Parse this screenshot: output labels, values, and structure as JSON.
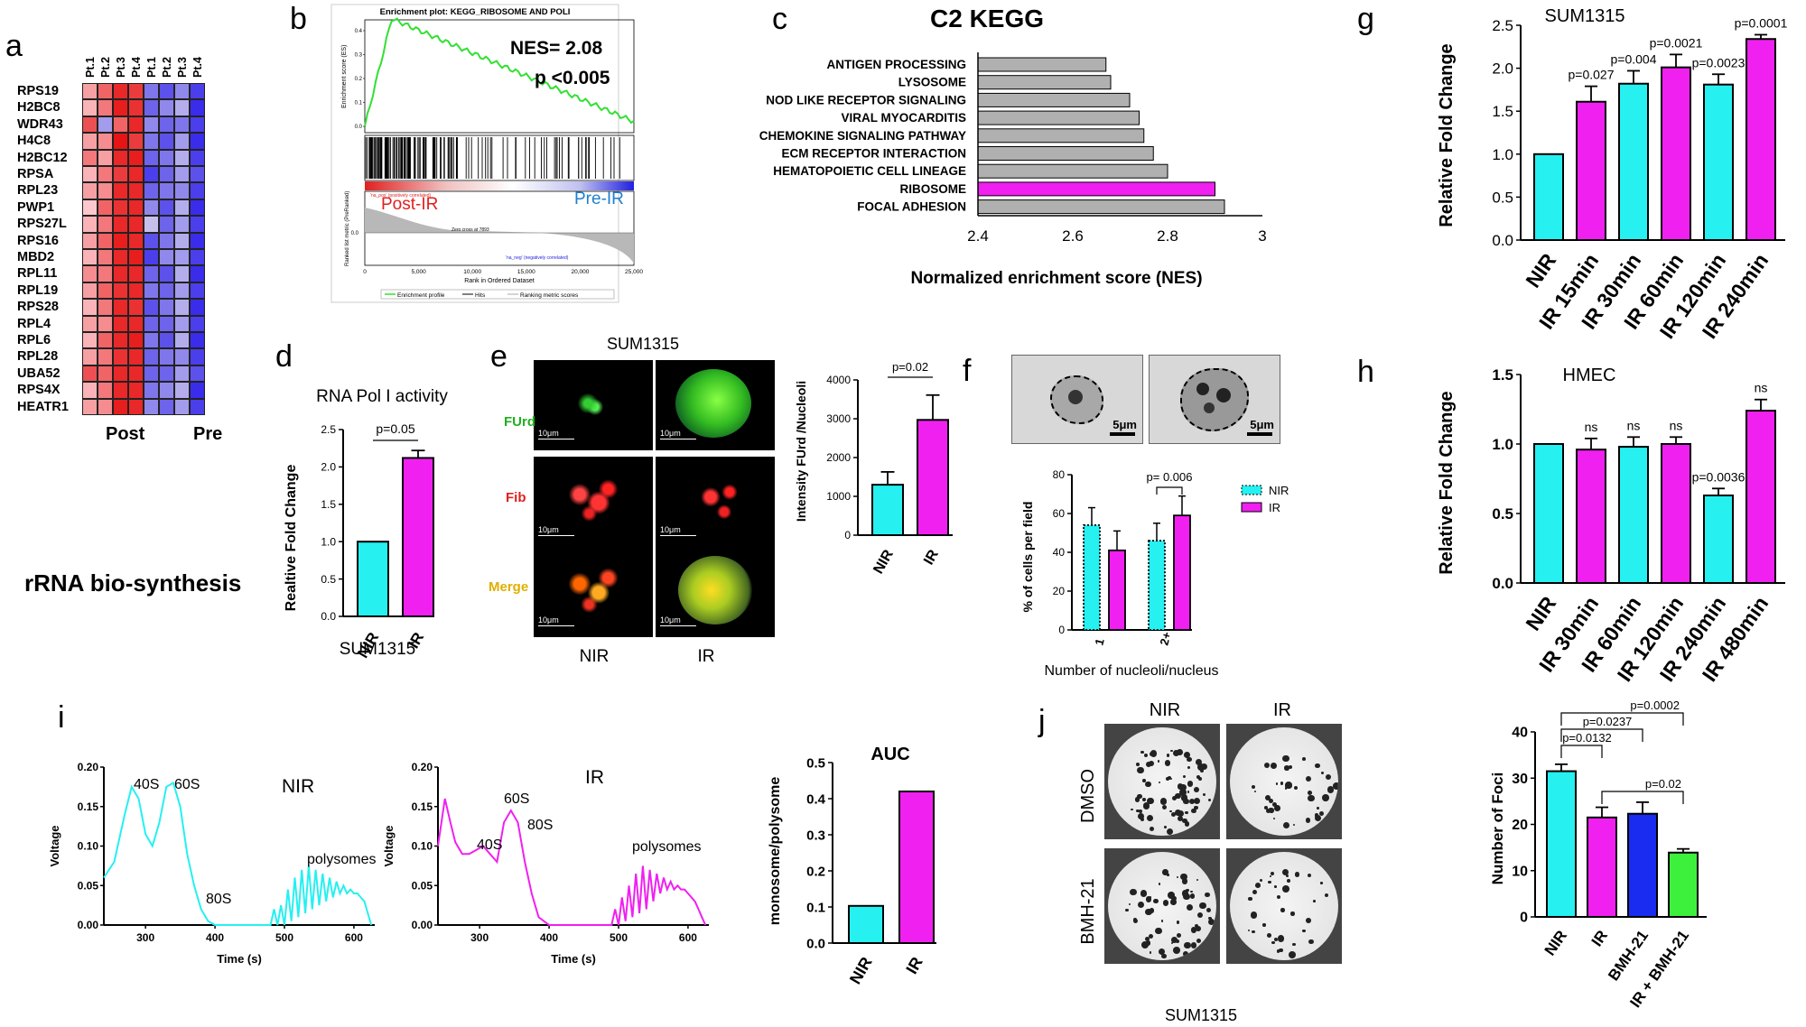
{
  "panel_labels": {
    "a": "a",
    "b": "b",
    "c": "c",
    "d": "d",
    "e": "e",
    "f": "f",
    "g": "g",
    "h": "h",
    "i": "i",
    "j": "j"
  },
  "colors": {
    "cyan": "#26f0f0",
    "magenta": "#f020f0",
    "blue": "#1a2cf0",
    "green": "#3cf03c",
    "grey": "#b0b0b0"
  },
  "panel_a": {
    "columns": [
      "Pt.1",
      "Pt.2",
      "Pt.3",
      "Pt.4",
      "Pt.1",
      "Pt.2",
      "Pt.3",
      "Pt.4"
    ],
    "genes": [
      "RPS19",
      "H2BC8",
      "WDR43",
      "H4C8",
      "H2BC12",
      "RPSA",
      "RPL23",
      "PWP1",
      "RPS27L",
      "RPS16",
      "MBD2",
      "RPL11",
      "RPL19",
      "RPS28",
      "RPL4",
      "RPL6",
      "RPL28",
      "UBA52",
      "RPS4X",
      "HEATR1"
    ],
    "groups": [
      "Post",
      "Pre"
    ],
    "footer": "rRNA bio-synthesis",
    "matrix": [
      [
        0.3,
        0.6,
        0.9,
        0.8,
        -0.5,
        -0.7,
        -0.4,
        -0.8
      ],
      [
        0.2,
        0.5,
        0.95,
        0.85,
        -0.6,
        -0.4,
        -0.2,
        -0.9
      ],
      [
        0.7,
        -0.3,
        0.6,
        0.9,
        -0.4,
        -0.6,
        -0.5,
        -0.8
      ],
      [
        0.3,
        0.4,
        1.0,
        0.8,
        -0.5,
        -0.7,
        -0.3,
        -0.9
      ],
      [
        0.5,
        0.3,
        0.9,
        0.95,
        -0.6,
        -0.5,
        -0.2,
        -0.8
      ],
      [
        0.2,
        0.5,
        0.8,
        0.9,
        -0.8,
        -0.6,
        -0.3,
        -0.7
      ],
      [
        0.3,
        0.4,
        0.9,
        0.9,
        -0.6,
        -0.5,
        -0.4,
        -0.8
      ],
      [
        0.1,
        0.6,
        0.85,
        0.9,
        -0.4,
        -0.7,
        -0.2,
        -0.9
      ],
      [
        0.2,
        0.5,
        0.9,
        0.9,
        -0.1,
        -0.6,
        -0.3,
        -0.8
      ],
      [
        0.3,
        0.6,
        0.95,
        0.9,
        -0.7,
        -0.5,
        -0.2,
        -0.9
      ],
      [
        0.2,
        0.5,
        0.9,
        0.95,
        -0.8,
        -0.4,
        -0.3,
        -0.8
      ],
      [
        0.4,
        0.5,
        0.9,
        0.9,
        -0.6,
        -0.7,
        -0.2,
        -0.9
      ],
      [
        0.3,
        0.6,
        0.85,
        0.9,
        -0.5,
        -0.6,
        -0.3,
        -0.8
      ],
      [
        0.2,
        0.5,
        0.9,
        0.85,
        -0.7,
        -0.5,
        -0.2,
        -0.9
      ],
      [
        0.3,
        0.4,
        0.9,
        0.9,
        -0.6,
        -0.6,
        -0.3,
        -0.8
      ],
      [
        0.2,
        0.6,
        0.9,
        0.95,
        -0.5,
        -0.7,
        -0.2,
        -0.9
      ],
      [
        0.3,
        0.5,
        0.85,
        0.9,
        -0.6,
        -0.5,
        -0.4,
        -0.8
      ],
      [
        0.7,
        0.6,
        0.9,
        0.9,
        -0.6,
        -0.6,
        -0.3,
        -0.7
      ],
      [
        0.2,
        0.5,
        0.9,
        0.9,
        -0.5,
        -0.4,
        -0.2,
        -0.9
      ],
      [
        0.3,
        0.4,
        0.95,
        0.9,
        -0.4,
        -0.6,
        -0.3,
        -0.8
      ]
    ]
  },
  "panel_b": {
    "title": "Enrichment plot: KEGG_RIBOSOME AND POLI",
    "nes": "NES= 2.08",
    "p": "p <0.005",
    "es_label": "Enrichment score (ES)",
    "rank_label": "Ranked list metric (PreRanked)",
    "pos_label": "Post-IR",
    "neg_label": "Pre-IR",
    "pos_note": "'na_pos' (positively correlated)",
    "neg_note": "'na_neg' (negatively correlated)",
    "zero_cross": "Zero cross at 7893",
    "xlabel": "Rank in Ordered Dataset",
    "es_ticks": [
      "0.4",
      "0.3",
      "0.2",
      "0.1",
      "0.0"
    ],
    "rank_ticks": [
      "0.0"
    ],
    "x_ticks": [
      "0",
      "5,000",
      "10,000",
      "15,000",
      "20,000",
      "25,000"
    ],
    "legend": [
      "Enrichment profile",
      "Hits",
      "Ranking metric scores"
    ]
  },
  "panel_c": {
    "title": "C2 KEGG",
    "xlabel": "Normalized enrichment score (NES)",
    "x_ticks": [
      "2.4",
      "2.6",
      "2.8",
      "3"
    ]
  },
  "panel_d": {
    "title": "RNA Pol I activity",
    "ylabel": "Realtive Fold Change",
    "pval": "p=0.05",
    "yticks": [
      "0.0",
      "0.5",
      "1.0",
      "1.5",
      "2.0",
      "2.5"
    ],
    "footer": "SUM1315"
  },
  "panel_e": {
    "title": "SUM1315",
    "rows": [
      "FUrd",
      "Fib",
      "Merge"
    ],
    "cols": [
      "NIR",
      "IR"
    ],
    "scalebar": "10μm",
    "ylabel": "Intensity FUrd /Nucleoli",
    "pval": "p=0.02",
    "yticks": [
      "0",
      "1000",
      "2000",
      "3000",
      "4000"
    ]
  },
  "panel_f": {
    "scalebar": "5μm",
    "ylabel": "% of cells per field",
    "xlabel": "Number of nucleoli/nucleus",
    "pval": "p= 0.006",
    "legend": [
      "NIR",
      "IR"
    ],
    "yticks": [
      "0",
      "20",
      "40",
      "60",
      "80"
    ]
  },
  "panel_g": {
    "title": "SUM1315",
    "ylabel": "Relative Fold Change",
    "yticks": [
      "0.0",
      "0.5",
      "1.0",
      "1.5",
      "2.0",
      "2.5"
    ]
  },
  "panel_h": {
    "title": "HMEC",
    "ylabel": "Relative Fold Change",
    "yticks": [
      "0.0",
      "0.5",
      "1.0",
      "1.5"
    ]
  },
  "panel_i": {
    "xlabel": "Time (s)",
    "ylabel": "Voltage",
    "nir": {
      "title": "NIR",
      "peaks": [
        "40S",
        "60S",
        "80S",
        "polysomes"
      ]
    },
    "ir": {
      "title": "IR",
      "peaks": [
        "40S",
        "60S",
        "80S",
        "polysomes"
      ]
    },
    "yticks": [
      "0.00",
      "0.05",
      "0.10",
      "0.15",
      "0.20"
    ],
    "xticks": [
      "300",
      "400",
      "500",
      "600"
    ],
    "auc_title": "AUC",
    "auc_ylabel": "monosome/polysome",
    "auc_yticks": [
      "0.0",
      "0.1",
      "0.2",
      "0.3",
      "0.4",
      "0.5"
    ]
  },
  "panel_j": {
    "cols": [
      "NIR",
      "IR"
    ],
    "rows": [
      "DMSO",
      "BMH-21"
    ],
    "footer": "SUM1315",
    "ylabel": "Number of Foci",
    "yticks": [
      "0",
      "10",
      "20",
      "30",
      "40"
    ],
    "pvals": [
      "p=0.0002",
      "p=0.0237",
      "p=0.0132",
      "p=0.02"
    ]
  },
  "chart_data": [
    {
      "id": "c",
      "type": "bar",
      "orientation": "horizontal",
      "categories": [
        "ANTIGEN PROCESSING",
        "LYSOSOME",
        "NOD LIKE RECEPTOR SIGNALING",
        "VIRAL MYOCARDITIS",
        "CHEMOKINE SIGNALING PATHWAY",
        "ECM RECEPTOR INTERACTION",
        "HEMATOPOIETIC CELL LINEAGE",
        "RIBOSOME",
        "FOCAL ADHESION"
      ],
      "values": [
        2.67,
        2.68,
        2.72,
        2.74,
        2.75,
        2.77,
        2.8,
        2.9,
        2.92
      ],
      "highlight": "RIBOSOME",
      "xlim": [
        2.4,
        3.0
      ]
    },
    {
      "id": "d",
      "type": "bar",
      "categories": [
        "NIR",
        "IR"
      ],
      "values": [
        1.0,
        2.12
      ],
      "errors": [
        0,
        0.1
      ],
      "ylim": [
        0,
        2.5
      ]
    },
    {
      "id": "e",
      "type": "bar",
      "categories": [
        "NIR",
        "IR"
      ],
      "values": [
        1300,
        2970
      ],
      "errors": [
        330,
        640
      ],
      "ylim": [
        0,
        4000
      ]
    },
    {
      "id": "f",
      "type": "bar",
      "categories": [
        "1",
        "2+"
      ],
      "series": [
        {
          "name": "NIR",
          "values": [
            54,
            46
          ],
          "errors": [
            9,
            9
          ]
        },
        {
          "name": "IR",
          "values": [
            41,
            59
          ],
          "errors": [
            10,
            10
          ]
        }
      ],
      "ylim": [
        0,
        80
      ]
    },
    {
      "id": "g",
      "type": "bar",
      "categories": [
        "NIR",
        "IR 15min",
        "IR 30min",
        "IR 60min",
        "IR 120min",
        "IR 240min"
      ],
      "values": [
        1.0,
        1.61,
        1.82,
        2.01,
        1.81,
        2.34
      ],
      "errors": [
        0,
        0.18,
        0.15,
        0.15,
        0.12,
        0.05
      ],
      "annotations": [
        "",
        "p=0.027",
        "p=0.004",
        "p=0.0021",
        "p=0.0023",
        "p=0.0001"
      ],
      "ylim": [
        0,
        2.5
      ]
    },
    {
      "id": "h",
      "type": "bar",
      "categories": [
        "NIR",
        "IR 30min",
        "IR 60min",
        "IR 120min",
        "IR 240min",
        "IR 480min"
      ],
      "values": [
        1.0,
        0.96,
        0.98,
        1.0,
        0.63,
        1.24
      ],
      "errors": [
        0,
        0.08,
        0.07,
        0.05,
        0.05,
        0.08
      ],
      "annotations": [
        "",
        "ns",
        "ns",
        "ns",
        "p=0.0036",
        "ns"
      ],
      "ylim": [
        0,
        1.5
      ]
    },
    {
      "id": "i-nir",
      "type": "line",
      "xlim": [
        240,
        630
      ],
      "ylim": [
        0,
        0.2
      ],
      "x": [
        240,
        255,
        270,
        280,
        290,
        300,
        310,
        320,
        330,
        340,
        350,
        360,
        370,
        380,
        390,
        400,
        420,
        450,
        480,
        485,
        490,
        495,
        500,
        505,
        510,
        515,
        520,
        525,
        530,
        535,
        540,
        545,
        550,
        555,
        560,
        565,
        570,
        575,
        580,
        585,
        590,
        595,
        600,
        605,
        610,
        615,
        620,
        625
      ],
      "y": [
        0.06,
        0.08,
        0.14,
        0.175,
        0.16,
        0.115,
        0.1,
        0.13,
        0.175,
        0.18,
        0.15,
        0.09,
        0.05,
        0.02,
        0.005,
        0,
        0,
        0,
        0,
        0.02,
        0,
        0.025,
        0,
        0.045,
        0.005,
        0.06,
        0.01,
        0.07,
        0.015,
        0.075,
        0.02,
        0.07,
        0.025,
        0.065,
        0.03,
        0.06,
        0.035,
        0.055,
        0.04,
        0.05,
        0.04,
        0.045,
        0.04,
        0.04,
        0.035,
        0.03,
        0.015,
        0
      ]
    },
    {
      "id": "i-ir",
      "type": "line",
      "xlim": [
        240,
        630
      ],
      "ylim": [
        0,
        0.2
      ],
      "x": [
        240,
        250,
        258,
        265,
        275,
        285,
        295,
        305,
        315,
        325,
        335,
        345,
        355,
        365,
        375,
        385,
        400,
        430,
        480,
        490,
        495,
        500,
        505,
        510,
        515,
        520,
        525,
        530,
        535,
        540,
        545,
        550,
        555,
        560,
        565,
        570,
        575,
        580,
        585,
        590,
        595,
        600,
        605,
        610,
        615,
        620,
        625
      ],
      "y": [
        0.1,
        0.16,
        0.13,
        0.105,
        0.09,
        0.09,
        0.095,
        0.1,
        0.09,
        0.08,
        0.13,
        0.145,
        0.13,
        0.08,
        0.04,
        0.01,
        0,
        0,
        0,
        0,
        0.02,
        0,
        0.035,
        0.005,
        0.05,
        0.01,
        0.065,
        0.015,
        0.075,
        0.02,
        0.07,
        0.03,
        0.065,
        0.04,
        0.06,
        0.045,
        0.055,
        0.045,
        0.05,
        0.045,
        0.045,
        0.04,
        0.035,
        0.03,
        0.02,
        0.01,
        0
      ]
    },
    {
      "id": "i-auc",
      "type": "bar",
      "categories": [
        "NIR",
        "IR"
      ],
      "values": [
        0.103,
        0.42
      ],
      "ylim": [
        0,
        0.5
      ]
    },
    {
      "id": "j",
      "type": "bar",
      "categories": [
        "NIR",
        "IR",
        "BMH-21",
        "IR + BMH-21"
      ],
      "values": [
        31.5,
        21.5,
        22.3,
        13.9
      ],
      "errors": [
        1.5,
        2.2,
        2.5,
        0.8
      ],
      "ylim": [
        0,
        40
      ]
    }
  ]
}
